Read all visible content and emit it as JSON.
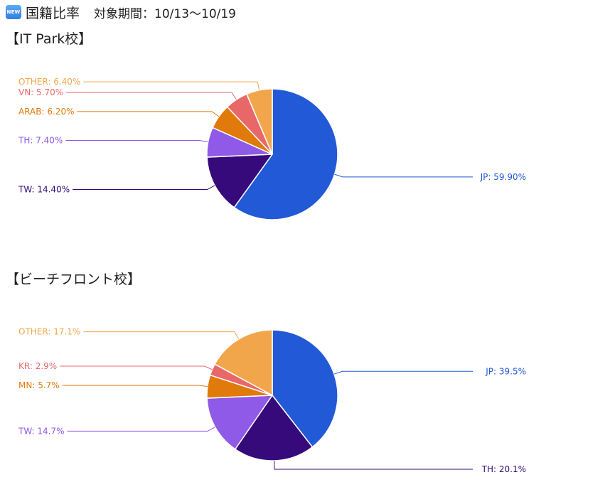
{
  "header": {
    "badge": "NEW",
    "title": "国籍比率",
    "period": "対象期間：10/13〜10/19"
  },
  "sections": [
    {
      "title": "【IT Park校】"
    },
    {
      "title": "【ビーチフロント校】"
    }
  ],
  "chart_data": [
    {
      "type": "pie",
      "title": "【IT Park校】",
      "start_angle_deg": 0,
      "direction": "clockwise",
      "slices": [
        {
          "label": "JP",
          "value": 59.9,
          "display": "JP: 59.90%",
          "color": "#2259d6"
        },
        {
          "label": "TW",
          "value": 14.4,
          "display": "TW: 14.40%",
          "color": "#360a7a"
        },
        {
          "label": "TH",
          "value": 7.4,
          "display": "TH: 7.40%",
          "color": "#8f5ae7"
        },
        {
          "label": "ARAB",
          "value": 6.2,
          "display": "ARAB: 6.20%",
          "color": "#e07a0a"
        },
        {
          "label": "VN",
          "value": 5.7,
          "display": "VN: 5.70%",
          "color": "#e8686a"
        },
        {
          "label": "OTHER",
          "value": 6.4,
          "display": "OTHER: 6.40%",
          "color": "#f2a64b"
        }
      ]
    },
    {
      "type": "pie",
      "title": "【ビーチフロント校】",
      "start_angle_deg": 0,
      "direction": "clockwise",
      "slices": [
        {
          "label": "JP",
          "value": 39.5,
          "display": "JP: 39.5%",
          "color": "#2259d6"
        },
        {
          "label": "TH",
          "value": 20.1,
          "display": "TH: 20.1%",
          "color": "#360a7a"
        },
        {
          "label": "TW",
          "value": 14.7,
          "display": "TW: 14.7%",
          "color": "#8f5ae7"
        },
        {
          "label": "MN",
          "value": 5.7,
          "display": "MN: 5.7%",
          "color": "#e07a0a"
        },
        {
          "label": "KR",
          "value": 2.9,
          "display": "KR: 2.9%",
          "color": "#e8686a"
        },
        {
          "label": "OTHER",
          "value": 17.1,
          "display": "OTHER: 17.1%",
          "color": "#f2a64b"
        }
      ]
    }
  ]
}
